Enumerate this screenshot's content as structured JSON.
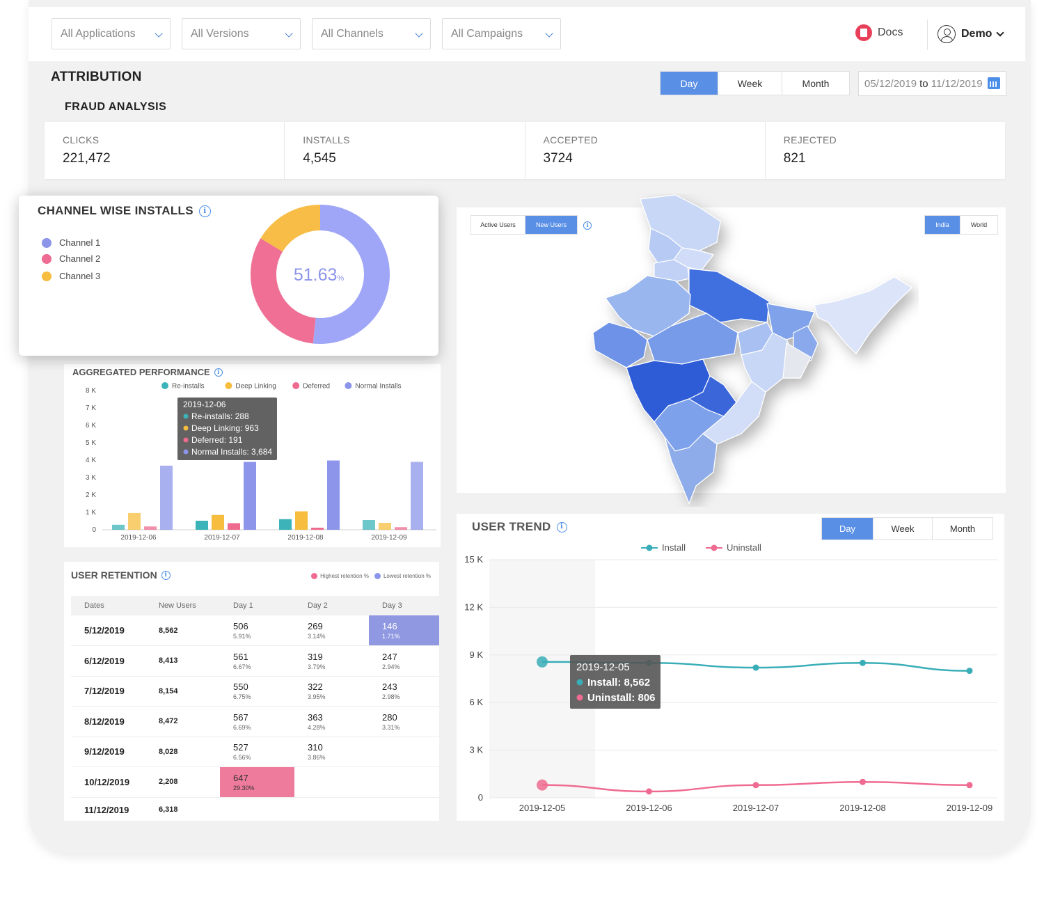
{
  "filters": [
    {
      "label": "All Applications"
    },
    {
      "label": "All Versions"
    },
    {
      "label": "All Channels"
    },
    {
      "label": "All Campaigns"
    }
  ],
  "header": {
    "docs_label": "Docs",
    "user_label": "Demo"
  },
  "page_title": "ATTRIBUTION",
  "section_title": "FRAUD ANALYSIS",
  "period_tabs": [
    "Day",
    "Week",
    "Month"
  ],
  "period_active": "Day",
  "date_range": {
    "from": "05/12/2019",
    "sep": "to",
    "to": "11/12/2019"
  },
  "stats": [
    {
      "label": "CLICKS",
      "value": "221,472"
    },
    {
      "label": "INSTALLS",
      "value": "4,545"
    },
    {
      "label": "ACCEPTED",
      "value": "3724"
    },
    {
      "label": "REJECTED",
      "value": "821"
    }
  ],
  "channel_installs": {
    "title": "CHANNEL WISE INSTALLS",
    "legend": [
      {
        "name": "Channel 1",
        "color": "#8c95ea"
      },
      {
        "name": "Channel 2",
        "color": "#ef6b91"
      },
      {
        "name": "Channel 3",
        "color": "#f6bd3e"
      }
    ],
    "center_value": "51.63",
    "center_unit": "%",
    "chart_data": {
      "type": "pie",
      "categories": [
        "Channel 1",
        "Channel 2",
        "Channel 3"
      ],
      "values": [
        51.63,
        32.0,
        16.37
      ],
      "colors": [
        "#a0a6f7",
        "#ef7094",
        "#f7bd46"
      ]
    }
  },
  "aggregated": {
    "title": "AGGREGATED PERFORMANCE",
    "chart_data": {
      "type": "bar",
      "categories": [
        "2019-12-06",
        "2019-12-07",
        "2019-12-08",
        "2019-12-09"
      ],
      "series": [
        {
          "name": "Re-installs",
          "color": "#3bb3b8",
          "values": [
            288,
            520,
            610,
            560
          ]
        },
        {
          "name": "Deep Linking",
          "color": "#f6bd3e",
          "values": [
            963,
            850,
            1060,
            400
          ]
        },
        {
          "name": "Deferred",
          "color": "#ee6b8e",
          "values": [
            191,
            380,
            120,
            150
          ]
        },
        {
          "name": "Normal Installs",
          "color": "#8c95ea",
          "values": [
            3684,
            3900,
            3980,
            3900
          ]
        }
      ],
      "ylim": [
        0,
        8000
      ],
      "yticks": [
        "0",
        "1 K",
        "2 K",
        "3 K",
        "4 K",
        "5 K",
        "6 K",
        "7 K",
        "8 K"
      ],
      "legend": "top"
    },
    "tooltip": {
      "date": "2019-12-06",
      "lines": [
        "Re-installs: 288",
        "Deep Linking: 963",
        "Deferred: 191",
        "Normal Installs: 3,684"
      ]
    }
  },
  "retention": {
    "title": "USER RETENTION",
    "legend_high": "Highest retention %",
    "legend_low": "Lowest retention %",
    "columns": [
      "Dates",
      "New Users",
      "Day 1",
      "Day 2",
      "Day 3"
    ],
    "rows": [
      {
        "date": "5/12/2019",
        "new": "8,562",
        "d1": "506",
        "d1p": "5.91%",
        "d2": "269",
        "d2p": "3.14%",
        "d3": "146",
        "d3p": "1.71%"
      },
      {
        "date": "6/12/2019",
        "new": "8,413",
        "d1": "561",
        "d1p": "6.67%",
        "d2": "319",
        "d2p": "3.79%",
        "d3": "247",
        "d3p": "2.94%"
      },
      {
        "date": "7/12/2019",
        "new": "8,154",
        "d1": "550",
        "d1p": "6.75%",
        "d2": "322",
        "d2p": "3.95%",
        "d3": "243",
        "d3p": "2.98%"
      },
      {
        "date": "8/12/2019",
        "new": "8,472",
        "d1": "567",
        "d1p": "6.69%",
        "d2": "363",
        "d2p": "4.28%",
        "d3": "280",
        "d3p": "3.31%"
      },
      {
        "date": "9/12/2019",
        "new": "8,028",
        "d1": "527",
        "d1p": "6.56%",
        "d2": "310",
        "d2p": "3.86%",
        "d3": "",
        "d3p": ""
      },
      {
        "date": "10/12/2019",
        "new": "2,208",
        "d1": "647",
        "d1p": "29.30%",
        "d2": "",
        "d2p": "",
        "d3": "",
        "d3p": ""
      },
      {
        "date": "11/12/2019",
        "new": "6,318",
        "d1": "",
        "d1p": "",
        "d2": "",
        "d2p": "",
        "d3": "",
        "d3p": ""
      }
    ],
    "colors": {
      "high": "#ee7a9c",
      "low": "#9098e2"
    }
  },
  "map": {
    "user_tabs": [
      "Active Users",
      "New Users"
    ],
    "user_active": "New Users",
    "region_tabs": [
      "India",
      "World"
    ],
    "region_active": "India"
  },
  "user_trend": {
    "title": "USER TREND",
    "tabs": [
      "Day",
      "Week",
      "Month"
    ],
    "active": "Day",
    "chart_data": {
      "type": "line",
      "x": [
        "2019-12-05",
        "2019-12-06",
        "2019-12-07",
        "2019-12-08",
        "2019-12-09"
      ],
      "series": [
        {
          "name": "Install",
          "color": "#3aaeb8",
          "values": [
            8562,
            8500,
            8200,
            8500,
            8000
          ]
        },
        {
          "name": "Uninstall",
          "color": "#ef6b91",
          "values": [
            806,
            400,
            800,
            1000,
            800
          ]
        }
      ],
      "ylim": [
        0,
        15000
      ],
      "yticks": [
        "0",
        "3 K",
        "6 K",
        "9 K",
        "12 K",
        "15 K"
      ],
      "legend": "top"
    },
    "tooltip": {
      "date": "2019-12-05",
      "lines": [
        "Install: 8,562",
        "Uninstall: 806"
      ]
    }
  }
}
